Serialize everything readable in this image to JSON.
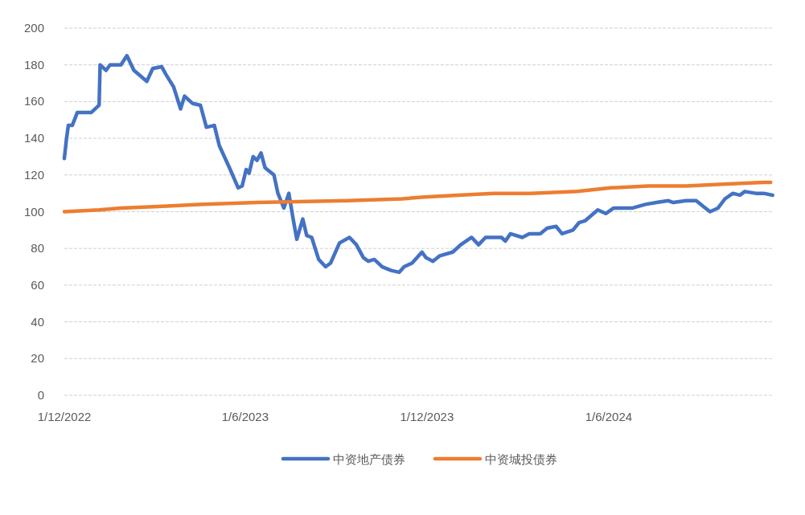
{
  "chart_data": {
    "type": "line",
    "grid": "y",
    "legend": "bottom",
    "xlim": [
      "2022-12-01",
      "2024-11-14"
    ],
    "xticks": [
      {
        "value": "2022-12-01",
        "label": "1/12/2022"
      },
      {
        "value": "2023-06-01",
        "label": "1/6/2023"
      },
      {
        "value": "2023-12-01",
        "label": "1/12/2023"
      },
      {
        "value": "2024-06-01",
        "label": "1/6/2024"
      }
    ],
    "ylim": [
      0,
      200
    ],
    "yticks": [
      0,
      20,
      40,
      60,
      80,
      100,
      120,
      140,
      160,
      180,
      200
    ],
    "series": [
      {
        "name": "中资地产债券",
        "color": "#4472c4",
        "x": [
          "2022-12-01",
          "2022-12-03",
          "2022-12-05",
          "2022-12-09",
          "2022-12-14",
          "2022-12-28",
          "2023-01-05",
          "2023-01-06",
          "2023-01-12",
          "2023-01-16",
          "2023-01-27",
          "2023-02-02",
          "2023-02-09",
          "2023-02-22",
          "2023-02-28",
          "2023-03-09",
          "2023-03-13",
          "2023-03-21",
          "2023-03-28",
          "2023-04-01",
          "2023-04-09",
          "2023-04-17",
          "2023-04-23",
          "2023-05-01",
          "2023-05-06",
          "2023-05-17",
          "2023-05-25",
          "2023-05-29",
          "2023-06-02",
          "2023-06-05",
          "2023-06-09",
          "2023-06-13",
          "2023-06-17",
          "2023-06-21",
          "2023-06-30",
          "2023-07-04",
          "2023-07-10",
          "2023-07-15",
          "2023-07-19",
          "2023-07-23",
          "2023-07-29",
          "2023-08-02",
          "2023-08-07",
          "2023-08-14",
          "2023-08-21",
          "2023-08-26",
          "2023-09-04",
          "2023-09-14",
          "2023-09-21",
          "2023-09-28",
          "2023-10-03",
          "2023-10-09",
          "2023-10-17",
          "2023-10-26",
          "2023-11-03",
          "2023-11-08",
          "2023-11-16",
          "2023-11-26",
          "2023-11-30",
          "2023-12-07",
          "2023-12-14",
          "2023-12-27",
          "2024-01-04",
          "2024-01-15",
          "2024-01-22",
          "2024-01-29",
          "2024-02-14",
          "2024-02-18",
          "2024-02-23",
          "2024-03-06",
          "2024-03-13",
          "2024-03-24",
          "2024-03-31",
          "2024-04-09",
          "2024-04-15",
          "2024-04-26",
          "2024-05-02",
          "2024-05-08",
          "2024-05-21",
          "2024-05-29",
          "2024-06-06",
          "2024-06-25",
          "2024-07-08",
          "2024-07-19",
          "2024-07-31",
          "2024-08-05",
          "2024-08-18",
          "2024-08-28",
          "2024-09-04",
          "2024-09-11",
          "2024-09-19",
          "2024-09-26",
          "2024-10-04",
          "2024-10-11",
          "2024-10-16",
          "2024-10-27",
          "2024-11-04",
          "2024-11-13"
        ],
        "values": [
          129,
          139,
          147,
          147,
          154,
          154,
          158,
          180,
          177,
          180,
          180,
          185,
          177,
          171,
          178,
          179,
          175,
          168,
          156,
          163,
          159,
          158,
          146,
          147,
          136,
          123,
          113,
          114,
          123,
          121,
          130,
          128,
          132,
          124,
          120,
          110,
          102,
          110,
          97,
          85,
          96,
          87,
          86,
          74,
          70,
          72,
          83,
          86,
          82,
          75,
          73,
          74,
          70,
          68,
          67,
          70,
          72,
          78,
          75,
          73,
          76,
          78,
          82,
          86,
          82,
          86,
          86,
          84,
          88,
          86,
          88,
          88,
          91,
          92,
          88,
          90,
          94,
          95,
          101,
          99,
          102,
          102,
          104,
          105,
          106,
          105,
          106,
          106,
          103,
          100,
          102,
          107,
          110,
          109,
          111,
          110,
          110,
          109
        ]
      },
      {
        "name": "中资城投债券",
        "color": "#ed7d31",
        "x": [
          "2022-12-01",
          "2023-01-05",
          "2023-01-27",
          "2023-03-10",
          "2023-04-20",
          "2023-06-13",
          "2023-09-12",
          "2023-11-06",
          "2023-11-28",
          "2024-01-01",
          "2024-02-06",
          "2024-03-14",
          "2024-04-30",
          "2024-06-03",
          "2024-07-11",
          "2024-08-18",
          "2024-09-24",
          "2024-11-04",
          "2024-11-11"
        ],
        "values": [
          100,
          101,
          102,
          103,
          104,
          105,
          106,
          107,
          108,
          109,
          110,
          110,
          111,
          113,
          114,
          114,
          115,
          116,
          116
        ]
      }
    ]
  }
}
